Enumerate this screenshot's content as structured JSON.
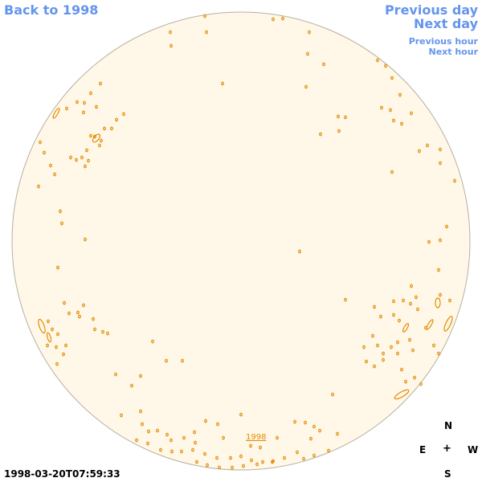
{
  "nav": {
    "back": "Back to 1998",
    "previous_day": "Previous day",
    "next_day": "Next day",
    "previous_hour": "Previous hour",
    "next_hour": "Next hour"
  },
  "disk": {
    "fill_color": "#fff8e8",
    "edge_color": "#b8b0a0",
    "contour_color": "#e38b00",
    "year_label": "1998"
  },
  "timestamp": "1998-03-20T07:59:33",
  "compass": {
    "north": "N",
    "east": "E",
    "center": "+",
    "west": "W",
    "south": "S"
  }
}
